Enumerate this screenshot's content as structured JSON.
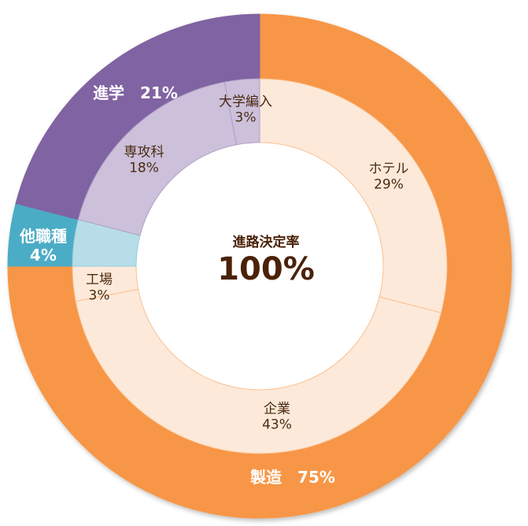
{
  "chart_data": {
    "type": "pie",
    "variant": "nested-donut",
    "title": "",
    "center": {
      "title": "進路決定率",
      "value": "100%"
    },
    "outer_ring": [
      {
        "label": "製造",
        "value": 75,
        "display": "製造　75%",
        "color": "#F79646"
      },
      {
        "label": "他職種",
        "value": 4,
        "display": "他職種\n4%",
        "color": "#4BACC6"
      },
      {
        "label": "進学",
        "value": 21,
        "display": "進学　21%",
        "color": "#8064A2"
      }
    ],
    "inner_ring": [
      {
        "label": "ホテル",
        "value": 29,
        "parent": "製造",
        "color": "#FDE9D9"
      },
      {
        "label": "企業",
        "value": 43,
        "parent": "製造",
        "color": "#FDE9D9"
      },
      {
        "label": "工場",
        "value": 3,
        "parent": "製造",
        "color": "#FDE9D9"
      },
      {
        "label": "他職種",
        "value": 4,
        "parent": "他職種",
        "color": "#B7DEE8"
      },
      {
        "label": "専攻科",
        "value": 18,
        "parent": "進学",
        "color": "#CCC0DA"
      },
      {
        "label": "大学編入",
        "value": 3,
        "parent": "進学",
        "color": "#CCC0DA"
      }
    ],
    "start_angle_deg": 0,
    "direction": "clockwise",
    "legend": "none"
  },
  "labels": {
    "center_title": "進路決定率",
    "center_value": "100%",
    "outer_manufacturing": "製造　75%",
    "outer_other_line1": "他職種",
    "outer_other_line2": "4%",
    "outer_study": "進学　21%",
    "inner_hotel_name": "ホテル",
    "inner_hotel_pct": "29%",
    "inner_company_name": "企業",
    "inner_company_pct": "43%",
    "inner_factory_name": "工場",
    "inner_factory_pct": "3%",
    "inner_advanced_name": "専攻科",
    "inner_advanced_pct": "18%",
    "inner_transfer_name": "大学編入",
    "inner_transfer_pct": "3%"
  }
}
